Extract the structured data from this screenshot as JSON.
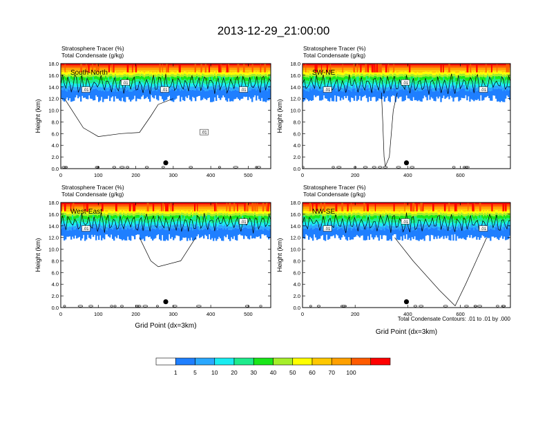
{
  "title": "2013-12-29_21:00:00",
  "colors": {
    "levels": [
      "#ffffff",
      "#1f7fff",
      "#2aa8ff",
      "#19ecf0",
      "#1eeb8c",
      "#19e619",
      "#a6ee2a",
      "#ffff00",
      "#ffc800",
      "#ffa000",
      "#ff5a00",
      "#ff0000"
    ]
  },
  "chart_data": [
    {
      "type": "heatmap",
      "panel": "South-North",
      "label": "South-North",
      "title_lines": [
        "Stratosphere Tracer   (%)",
        "Total Condensate   (g/kg)"
      ],
      "xlabel": "",
      "ylabel": "Height (km)",
      "xlim": [
        0,
        560
      ],
      "ylim": [
        0,
        18
      ],
      "xticks": [
        0,
        100,
        200,
        300,
        400,
        500
      ],
      "yticks": [
        "0.0",
        "2.0",
        "4.0",
        "6.0",
        "8.0",
        "10.0",
        "12.0",
        "14.0",
        "16.0",
        "18.0"
      ],
      "contour_labels": [
        ".01",
        ".01",
        ".01",
        ".01",
        ".01"
      ],
      "marker_x": 280,
      "marker_y": 1.0
    },
    {
      "type": "heatmap",
      "panel": "SW-NE",
      "label": "SW-NE",
      "title_lines": [
        "Stratosphere Tracer   (%)",
        "Total Condensate   (g/kg)"
      ],
      "xlabel": "",
      "ylabel": "Height (km)",
      "xlim": [
        0,
        790
      ],
      "ylim": [
        0,
        18
      ],
      "xticks": [
        0,
        200,
        400,
        600
      ],
      "yticks": [
        "0.0",
        "2.0",
        "4.0",
        "6.0",
        "8.0",
        "10.0",
        "12.0",
        "14.0",
        "16.0",
        "18.0"
      ],
      "contour_labels": [
        ".01",
        ".01",
        ".01"
      ],
      "marker_x": 395,
      "marker_y": 1.0
    },
    {
      "type": "heatmap",
      "panel": "West-East",
      "label": "West-East",
      "title_lines": [
        "Stratosphere Tracer   (%)",
        "Total Condensate   (g/kg)"
      ],
      "xlabel": "Grid Point (dx=3km)",
      "ylabel": "Height (km)",
      "xlim": [
        0,
        560
      ],
      "ylim": [
        0,
        18
      ],
      "xticks": [
        0,
        100,
        200,
        300,
        400,
        500
      ],
      "yticks": [
        "0.0",
        "2.0",
        "4.0",
        "6.0",
        "8.0",
        "10.0",
        "12.0",
        "14.0",
        "16.0",
        "18.0"
      ],
      "contour_labels": [
        ".01",
        ".01"
      ],
      "marker_x": 280,
      "marker_y": 1.0
    },
    {
      "type": "heatmap",
      "panel": "NW-SE",
      "label": "NW-SE",
      "title_lines": [
        "Stratosphere Tracer   (%)",
        "Total Condensate   (g/kg)"
      ],
      "xlabel": "Grid Point (dx=3km)",
      "ylabel": "Height (km)",
      "xlim": [
        0,
        790
      ],
      "ylim": [
        0,
        18
      ],
      "xticks": [
        0,
        200,
        400,
        600
      ],
      "yticks": [
        "0.0",
        "2.0",
        "4.0",
        "6.0",
        "8.0",
        "10.0",
        "12.0",
        "14.0",
        "16.0",
        "18.0"
      ],
      "contour_labels": [
        ".01",
        ".01",
        ".01"
      ],
      "marker_x": 395,
      "marker_y": 1.0
    },
    {
      "type": "bar",
      "panel": "colorbar",
      "categories": [
        "1",
        "5",
        "10",
        "20",
        "30",
        "40",
        "50",
        "60",
        "70",
        "100"
      ]
    }
  ],
  "contour_note": "Total Condensate Contours: .01 to .01 by .000"
}
